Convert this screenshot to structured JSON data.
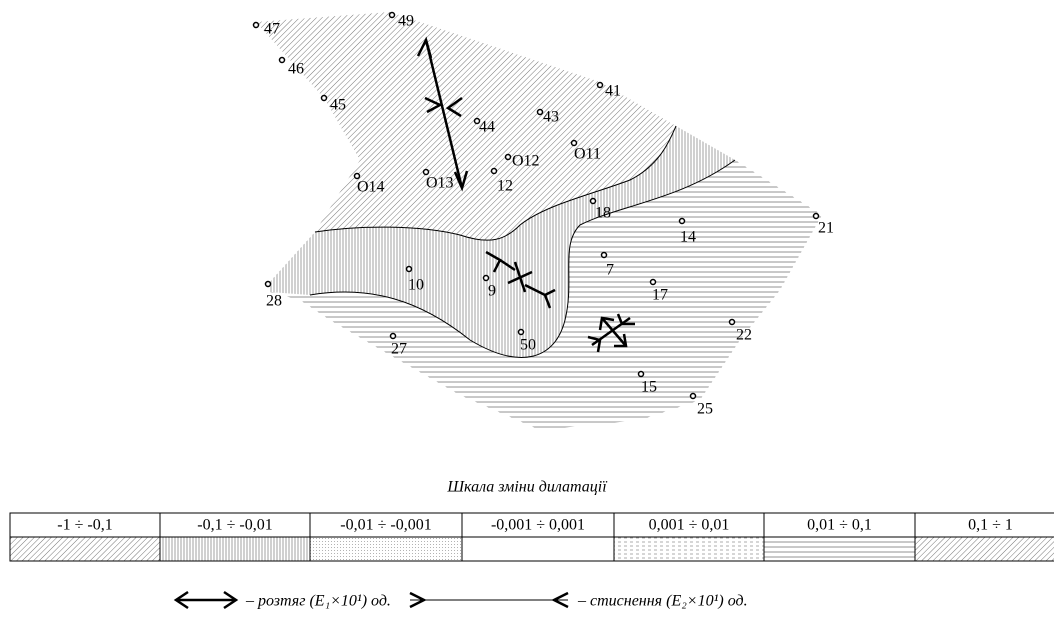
{
  "points": [
    {
      "label": "47"
    },
    {
      "label": "49"
    },
    {
      "label": "46"
    },
    {
      "label": "45"
    },
    {
      "label": "41"
    },
    {
      "label": "43"
    },
    {
      "label": "44"
    },
    {
      "label": "O12"
    },
    {
      "label": "O11"
    },
    {
      "label": "O13"
    },
    {
      "label": "O14"
    },
    {
      "label": "12"
    },
    {
      "label": "18"
    },
    {
      "label": "14"
    },
    {
      "label": "21"
    },
    {
      "label": "7"
    },
    {
      "label": "10"
    },
    {
      "label": "9"
    },
    {
      "label": "17"
    },
    {
      "label": "28"
    },
    {
      "label": "22"
    },
    {
      "label": "27"
    },
    {
      "label": "50"
    },
    {
      "label": "15"
    },
    {
      "label": "25"
    }
  ],
  "scale": {
    "title": "Шкала зміни дилатації",
    "ranges": [
      "-1 ÷ -0,1",
      "-0,1 ÷ -0,01",
      "-0,01 ÷ -0,001",
      "-0,001 ÷ 0,001",
      "0,001 ÷ 0,01",
      "0,01 ÷ 0,1",
      "0,1 ÷ 1"
    ]
  },
  "legend": {
    "tension": "– розтяг (E₁×10¹) од.",
    "compression": "– стиснення (E₂×10¹) од."
  }
}
